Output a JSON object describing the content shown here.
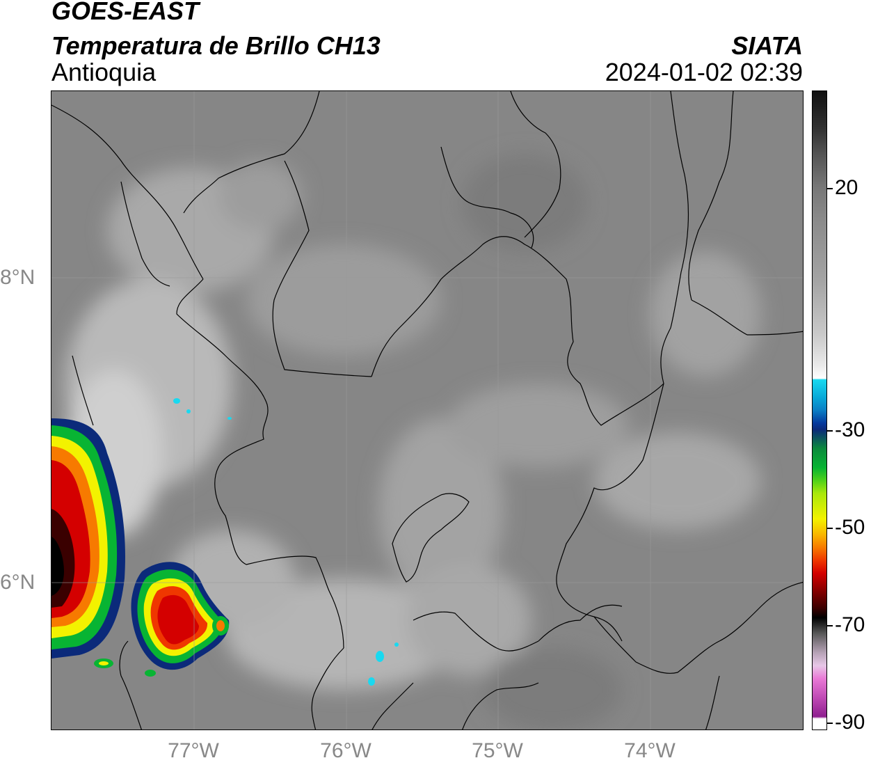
{
  "header": {
    "satellite": "GOES-EAST",
    "product": "Temperatura de Brillo CH13",
    "region": "Antioquia",
    "organization": "SIATA",
    "timestamp": "2024-01-02 02:39"
  },
  "map": {
    "lat_labels": [
      {
        "text": "8°N",
        "lat": 8
      },
      {
        "text": "6°N",
        "lat": 6
      }
    ],
    "lon_labels": [
      {
        "text": "77°W",
        "lon": -77
      },
      {
        "text": "76°W",
        "lon": -76
      },
      {
        "text": "75°W",
        "lon": -75
      },
      {
        "text": "74°W",
        "lon": -74
      }
    ]
  },
  "colorbar": {
    "labels": [
      "20",
      "-30",
      "-50",
      "-70",
      "-90"
    ]
  },
  "colors": {
    "background_gray": "#8a8a8a",
    "cold_red": "#d40000",
    "cold_yellow": "#f3f200",
    "cold_green": "#08b433",
    "cold_blue": "#0b2a7a"
  }
}
